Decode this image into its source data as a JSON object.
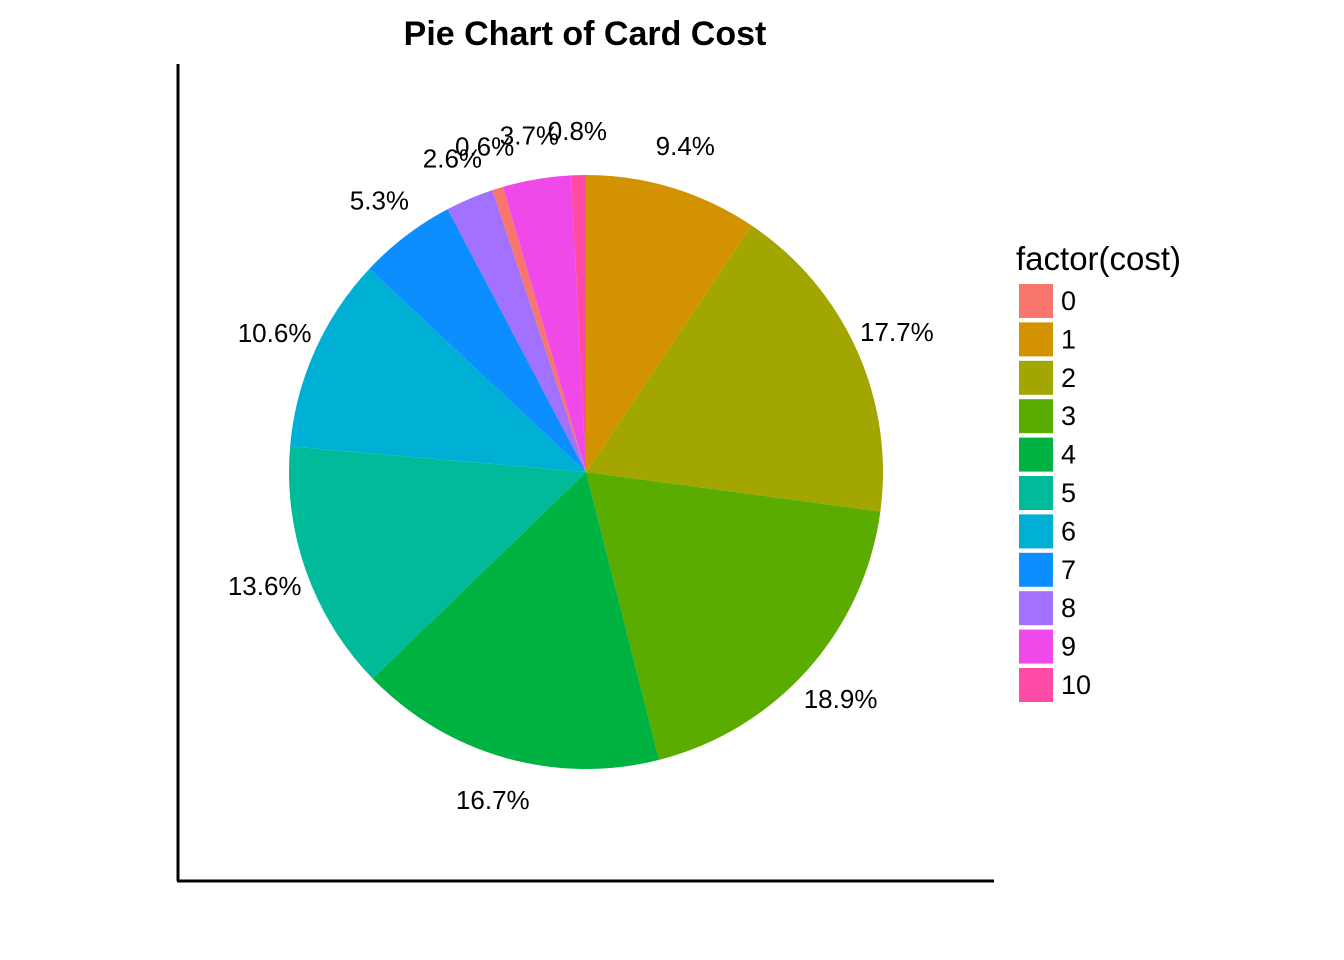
{
  "chart_data": {
    "type": "pie",
    "title": "Pie Chart of Card Cost",
    "legend_title": "factor(cost)",
    "legend_position": "right",
    "start": "12 o'clock",
    "direction": "clockwise",
    "slices": [
      {
        "category": "1",
        "value": 9.4,
        "label": "9.4%",
        "color": "#D39200"
      },
      {
        "category": "2",
        "value": 17.7,
        "label": "17.7%",
        "color": "#A3A500"
      },
      {
        "category": "3",
        "value": 18.9,
        "label": "18.9%",
        "color": "#5BAC00"
      },
      {
        "category": "4",
        "value": 16.7,
        "label": "16.7%",
        "color": "#00B242"
      },
      {
        "category": "5",
        "value": 13.6,
        "label": "13.6%",
        "color": "#00BA9A"
      },
      {
        "category": "6",
        "value": 10.6,
        "label": "10.6%",
        "color": "#00B0D4"
      },
      {
        "category": "7",
        "value": 5.3,
        "label": "5.3%",
        "color": "#0D8EFF"
      },
      {
        "category": "8",
        "value": 2.6,
        "label": "2.6%",
        "color": "#A371FF"
      },
      {
        "category": "0",
        "value": 0.6,
        "label": "0.6%",
        "color": "#F8766D"
      },
      {
        "category": "9",
        "value": 3.7,
        "label": "3.7%",
        "color": "#EF4AE9"
      },
      {
        "category": "10",
        "value": 0.8,
        "label": "0.8%",
        "color": "#FF4AA6"
      }
    ],
    "legend": [
      {
        "label": "0",
        "color": "#F8766D"
      },
      {
        "label": "1",
        "color": "#D39200"
      },
      {
        "label": "2",
        "color": "#A3A500"
      },
      {
        "label": "3",
        "color": "#5BAC00"
      },
      {
        "label": "4",
        "color": "#00B242"
      },
      {
        "label": "5",
        "color": "#00BA9A"
      },
      {
        "label": "6",
        "color": "#00B0D4"
      },
      {
        "label": "7",
        "color": "#0D8EFF"
      },
      {
        "label": "8",
        "color": "#A371FF"
      },
      {
        "label": "9",
        "color": "#EF4AE9"
      },
      {
        "label": "10",
        "color": "#FF4AA6"
      }
    ]
  }
}
